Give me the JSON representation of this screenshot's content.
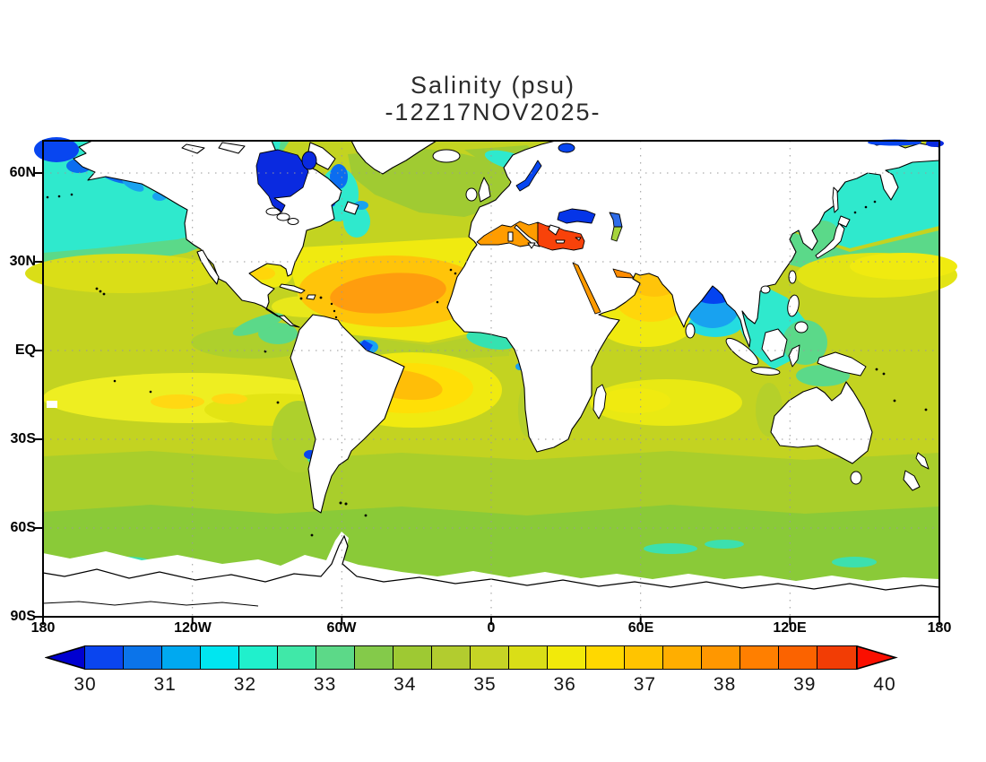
{
  "title": {
    "line1": "Salinity (psu)",
    "line2": "-12Z17NOV2025-"
  },
  "axes": {
    "lat_ticks": [
      "60N",
      "30N",
      "EQ",
      "30S",
      "60S",
      "90S"
    ],
    "lon_ticks": [
      "180",
      "120W",
      "60W",
      "0",
      "60E",
      "120E",
      "180"
    ]
  },
  "colorbar": {
    "tick_labels": [
      "30",
      "31",
      "32",
      "33",
      "34",
      "35",
      "36",
      "37",
      "38",
      "39",
      "40"
    ],
    "levels": [
      30,
      30.5,
      31,
      31.5,
      32,
      32.5,
      33,
      33.5,
      34,
      34.5,
      35,
      35.5,
      36,
      36.5,
      37,
      37.5,
      38,
      38.5,
      39,
      39.5,
      40
    ],
    "arrow_low_color": "#0000d0",
    "arrow_high_color": "#fa0f00",
    "segment_colors": [
      "#0a45ef",
      "#0b74ea",
      "#00a9f0",
      "#00e6f0",
      "#20f0cc",
      "#40e8a8",
      "#5cd988",
      "#84ca4a",
      "#9ec933",
      "#b2cc2f",
      "#c6d425",
      "#dade17",
      "#f2ea0a",
      "#ffd800",
      "#ffc400",
      "#ffae00",
      "#ff9700",
      "#ff7f00",
      "#fb6300",
      "#f23d05"
    ],
    "units": "psu"
  },
  "chart_data": {
    "type": "heatmap",
    "title": "Salinity (psu)",
    "datetime_label": "12Z17NOV2025",
    "units": "psu",
    "projection": "global equirectangular, lon 180W-180E, lat ~71N-90S",
    "x_tick_labels": [
      "180",
      "120W",
      "60W",
      "0",
      "60E",
      "120E",
      "180"
    ],
    "y_tick_labels": [
      "60N",
      "30N",
      "EQ",
      "30S",
      "60S",
      "90S"
    ],
    "grid": "dotted gray at 30-deg intervals",
    "colorbar_range": [
      30,
      40
    ],
    "colorbar_step": 0.5,
    "colorbar_colors": [
      "#0000d0",
      "#0a45ef",
      "#0b74ea",
      "#00a9f0",
      "#00e6f0",
      "#20f0cc",
      "#40e8a8",
      "#5cd988",
      "#84ca4a",
      "#9ec933",
      "#b2cc2f",
      "#c6d425",
      "#dade17",
      "#f2ea0a",
      "#ffd800",
      "#ffc400",
      "#ffae00",
      "#ff9700",
      "#ff7f00",
      "#fb6300",
      "#f23d05",
      "#fa0f00"
    ],
    "regions_approx_psu": [
      {
        "region": "Hudson Bay / Canadian Arctic channels",
        "psu": 30.0
      },
      {
        "region": "Baltic Sea",
        "psu": 30.0
      },
      {
        "region": "Black Sea",
        "psu": 30.5
      },
      {
        "region": "Bering / Chukchi shelf",
        "psu": 31.0
      },
      {
        "region": "Northern Bay of Bengal (Ganges plume)",
        "psu": 31.0
      },
      {
        "region": "Amazon, La Plata, Congo, Yellow Sea river plumes",
        "psu": 30.5
      },
      {
        "region": "Gulf of Alaska / subpolar North Pacific",
        "psu": 32.5
      },
      {
        "region": "Sea of Okhotsk",
        "psu": 32.5
      },
      {
        "region": "Indonesian seas / South China Sea",
        "psu": 33.0
      },
      {
        "region": "Southern Ocean 50S-65S",
        "psu": 34.0
      },
      {
        "region": "Subpolar North Atlantic",
        "psu": 34.5
      },
      {
        "region": "Subtropical North Pacific",
        "psu": 35.5
      },
      {
        "region": "South Pacific subtropical band",
        "psu": 36.0
      },
      {
        "region": "South Indian subtropical patch",
        "psu": 35.5
      },
      {
        "region": "Arabian Sea",
        "psu": 36.5
      },
      {
        "region": "South Atlantic subtropical gyre core",
        "psu": 37.0
      },
      {
        "region": "North Atlantic subtropical gyre (Sargasso) core",
        "psu": 37.5
      },
      {
        "region": "Western Mediterranean / Persian Gulf / Red Sea",
        "psu": 38.0
      },
      {
        "region": "Eastern Mediterranean",
        "psu": 39.0
      }
    ]
  }
}
